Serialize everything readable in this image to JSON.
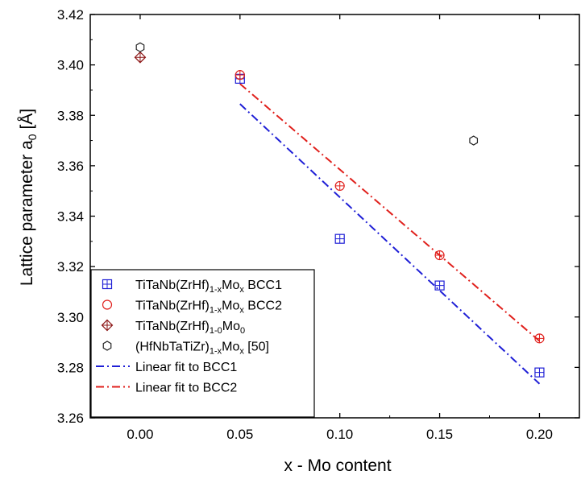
{
  "chart_data": {
    "type": "scatter",
    "xlabel": "x - Mo content",
    "ylabel": {
      "main": "Lattice parameter a",
      "sub": "0",
      "unit": " [Å]"
    },
    "xlim": [
      -0.025,
      0.22
    ],
    "ylim": [
      3.26,
      3.42
    ],
    "xticks": [
      "0.00",
      "0.05",
      "0.10",
      "0.15",
      "0.20"
    ],
    "xtick_values": [
      0.0,
      0.05,
      0.1,
      0.15,
      0.2
    ],
    "yticks": [
      "3.26",
      "3.28",
      "3.30",
      "3.32",
      "3.34",
      "3.36",
      "3.38",
      "3.40",
      "3.42"
    ],
    "ytick_values": [
      3.26,
      3.28,
      3.3,
      3.32,
      3.34,
      3.36,
      3.38,
      3.4,
      3.42
    ],
    "grid": false,
    "legend_position": "bottom-left",
    "series": [
      {
        "name": "TiTaNb(ZrHf)1-xMox BCC1",
        "legend_parts": [
          [
            "TiTaNb(ZrHf)",
            ""
          ],
          [
            "1-x",
            "sub"
          ],
          [
            "Mo",
            ""
          ],
          [
            "x",
            "sub"
          ],
          [
            " BCC1",
            ""
          ]
        ],
        "marker": "square-cross",
        "color": "#1f1fd6",
        "x": [
          0.05,
          0.1,
          0.15,
          0.2
        ],
        "y": [
          3.3945,
          3.331,
          3.3125,
          3.278
        ]
      },
      {
        "name": "TiTaNb(ZrHf)1-xMox BCC2",
        "legend_parts": [
          [
            "TiTaNb(ZrHf)",
            ""
          ],
          [
            "1-x",
            "sub"
          ],
          [
            "Mo",
            ""
          ],
          [
            "x",
            "sub"
          ],
          [
            " BCC2",
            ""
          ]
        ],
        "marker": "circle-cross",
        "color": "#e0201c",
        "x": [
          0.05,
          0.1,
          0.15,
          0.2
        ],
        "y": [
          3.396,
          3.352,
          3.3245,
          3.2915
        ]
      },
      {
        "name": "TiTaNb(ZrHf)1-0Mo0",
        "legend_parts": [
          [
            "TiTaNb(ZrHf)",
            ""
          ],
          [
            "1-0",
            "sub"
          ],
          [
            "Mo",
            ""
          ],
          [
            "0",
            "sub"
          ]
        ],
        "marker": "diamond-cross",
        "color": "#8b1414",
        "x": [
          0.0
        ],
        "y": [
          3.403
        ]
      },
      {
        "name": "(HfNbTaTiZr)1-xMox [50]",
        "legend_parts": [
          [
            "(HfNbTaTiZr)",
            ""
          ],
          [
            "1-x",
            "sub"
          ],
          [
            "Mo",
            ""
          ],
          [
            "x",
            "sub"
          ],
          [
            " [50]",
            ""
          ]
        ],
        "marker": "hexagon",
        "color": "#222222",
        "x": [
          0.0,
          0.167
        ],
        "y": [
          3.407,
          3.37
        ]
      }
    ],
    "fits": [
      {
        "name": "Linear fit to BCC1",
        "color": "#1f1fd6",
        "x": [
          0.05,
          0.2
        ],
        "y": [
          3.3845,
          3.2735
        ]
      },
      {
        "name": "Linear fit to BCC2",
        "color": "#e0201c",
        "x": [
          0.05,
          0.2
        ],
        "y": [
          3.3925,
          3.2905
        ]
      }
    ]
  }
}
